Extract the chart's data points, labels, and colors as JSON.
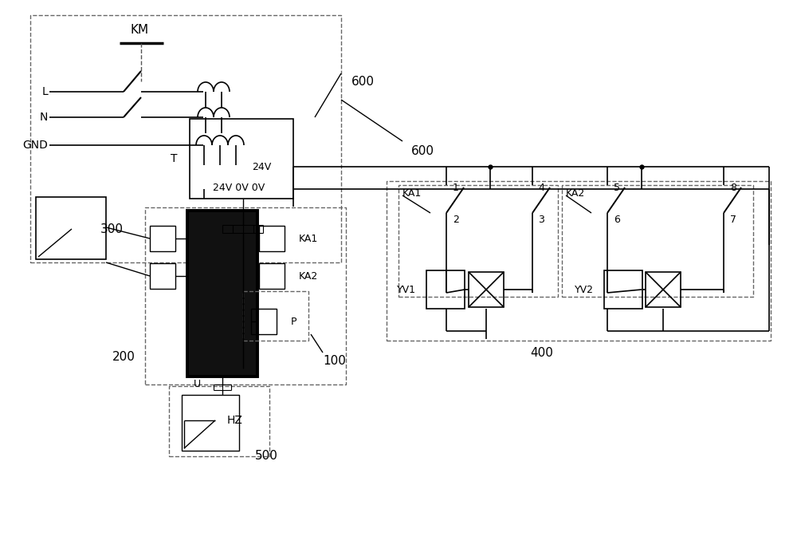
{
  "bg_color": "#ffffff",
  "fig_width": 10.0,
  "fig_height": 6.87,
  "dpi": 100,
  "labels": {
    "KM": "KM",
    "L": "L",
    "N": "N",
    "GND": "GND",
    "T": "T",
    "T_top": "24V",
    "T_bot": "24V 0V 0V",
    "KA1_coil": "KA1",
    "KA2_coil": "KA2",
    "P_coil": "P",
    "U": "U",
    "200": "200",
    "300": "300",
    "HZ": "HZ",
    "500": "500",
    "100": "100",
    "600": "600",
    "400": "400",
    "KA1_sw": "KA1",
    "KA2_sw": "KA2",
    "YV1": "YV1",
    "YV2": "YV2",
    "n1": "1",
    "n2": "2",
    "n3": "3",
    "n4": "4",
    "n5": "5",
    "n6": "6",
    "n7": "7",
    "n8": "8"
  }
}
